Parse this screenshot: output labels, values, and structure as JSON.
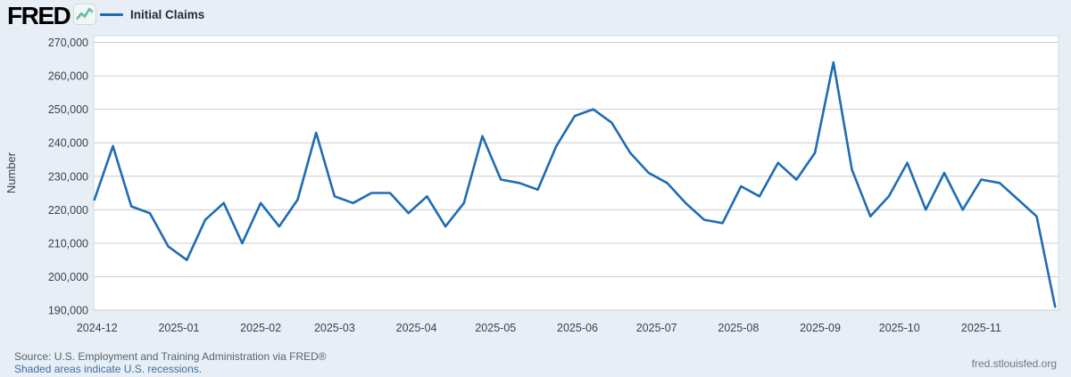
{
  "header": {
    "logo_text": "FRED",
    "logo_icon": "sparkline-chart-icon",
    "legend": {
      "label": "Initial Claims"
    }
  },
  "chart_data": {
    "type": "line",
    "title": "Initial Claims",
    "frequency": "weekly",
    "x_tick_labels": [
      "2024-12",
      "2025-01",
      "2025-02",
      "2025-03",
      "2025-04",
      "2025-05",
      "2025-06",
      "2025-07",
      "2025-08",
      "2025-09",
      "2025-10",
      "2025-11"
    ],
    "ylabel": "Number",
    "y_ticks": [
      270000,
      260000,
      250000,
      240000,
      230000,
      220000,
      210000,
      200000,
      190000
    ],
    "ylim": [
      190000,
      270000
    ],
    "grid": "horizontal",
    "legend_position": "top-left",
    "series": [
      {
        "name": "Initial Claims",
        "color": "#1e6cb4",
        "values": [
          223000,
          239000,
          221000,
          219000,
          209000,
          205000,
          217000,
          222000,
          210000,
          222000,
          215000,
          223000,
          243000,
          224000,
          222000,
          225000,
          225000,
          219000,
          224000,
          215000,
          222000,
          242000,
          229000,
          228000,
          226000,
          239000,
          248000,
          250000,
          246000,
          237000,
          231000,
          228000,
          222000,
          217000,
          216000,
          227000,
          224000,
          234000,
          229000,
          237000,
          264000,
          232000,
          218000,
          224000,
          234000,
          220000,
          231000,
          220000,
          229000,
          228000,
          223000,
          218000,
          191000
        ]
      }
    ]
  },
  "footer": {
    "source_line": "Source: U.S. Employment and Training Administration via FRED®",
    "recession_note": "Shaded areas indicate U.S. recessions.",
    "site_link": "fred.stlouisfed.org"
  },
  "colors": {
    "background": "#e8eef5",
    "plot_background": "#ffffff",
    "gridline": "#cccccc",
    "plot_border": "#d2d9df",
    "axis_text": "#39424c",
    "series_line": "#1e6cb4",
    "logo_icon_teal": "#4fb99f"
  }
}
